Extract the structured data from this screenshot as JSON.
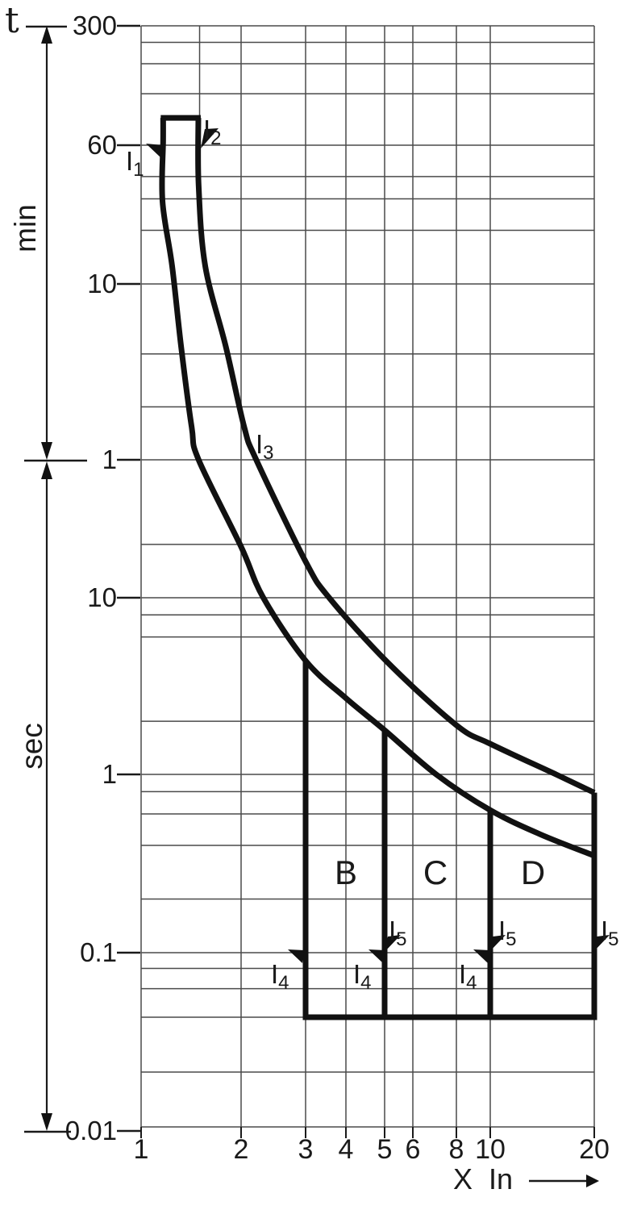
{
  "colors": {
    "background": "#ffffff",
    "grid": "#4a4a4a",
    "ink": "#1a1a1a",
    "curve": "#111111"
  },
  "chart_data": {
    "type": "line",
    "title": "",
    "description": "Miniature circuit breaker time-current tripping characteristic with B, C and D curve regions",
    "x_axis": {
      "label": "X In",
      "scale": "log",
      "range": [
        1,
        20
      ],
      "ticks": [
        "1",
        "2",
        "3",
        "4",
        "5",
        "6",
        "8",
        "10",
        "20"
      ],
      "tick_values": [
        1,
        2,
        3,
        4,
        5,
        6,
        8,
        10,
        20
      ]
    },
    "y_axis": {
      "symbol": "t",
      "scale": "log",
      "sections": [
        {
          "unit": "min",
          "tick_labels": [
            "300",
            "60",
            "10",
            "1"
          ],
          "tick_values": [
            300,
            60,
            10,
            1
          ]
        },
        {
          "unit": "sec",
          "tick_labels": [
            "10",
            "1",
            "0.1",
            "0.01"
          ],
          "tick_values": [
            10,
            1,
            0.1,
            0.01
          ]
        }
      ]
    },
    "grid": {
      "vertical_lines_x": [
        1,
        2,
        3,
        4,
        5,
        6,
        8,
        10,
        20
      ],
      "vertical_partial_x": 1.5,
      "horizontal_lines_t_seconds": [
        18000,
        14400,
        10800,
        7200,
        3600,
        2400,
        1800,
        1200,
        600,
        240,
        120,
        60,
        20,
        10,
        8,
        6,
        2,
        1,
        0.8,
        0.6,
        0.4,
        0.2,
        0.1,
        0.08,
        0.06,
        0.04,
        0.02,
        0.01
      ]
    },
    "series": [
      {
        "name": "lower trip limit",
        "points_x_tsec": [
          [
            1.165,
            5200
          ],
          [
            1.165,
            3800
          ],
          [
            1.16,
            1740
          ],
          [
            1.24,
            755
          ],
          [
            1.32,
            263
          ],
          [
            1.42,
            92
          ],
          [
            1.49,
            60
          ],
          [
            2.0,
            19.4
          ],
          [
            2.3,
            10
          ],
          [
            3.0,
            4.4
          ],
          [
            4.0,
            2.7
          ],
          [
            5.0,
            1.78
          ],
          [
            7.0,
            1.0
          ],
          [
            10,
            0.63
          ],
          [
            14,
            0.46
          ],
          [
            20,
            0.35
          ]
        ]
      },
      {
        "name": "upper trip limit",
        "points_x_tsec": [
          [
            1.487,
            5200
          ],
          [
            1.49,
            2140
          ],
          [
            1.56,
            755
          ],
          [
            1.8,
            263
          ],
          [
            2.04,
            92
          ],
          [
            2.2,
            60
          ],
          [
            3.0,
            16
          ],
          [
            3.55,
            10
          ],
          [
            5.1,
            4.3
          ],
          [
            8.0,
            1.9
          ],
          [
            10,
            1.49
          ],
          [
            15.5,
            1.0
          ],
          [
            20,
            0.79
          ]
        ]
      }
    ],
    "top_cap": {
      "t_seconds": 5200,
      "x_from": 1.165,
      "x_to": 1.487
    },
    "regions": [
      {
        "label": "B",
        "x_left": 3,
        "t_top_seconds": 4.4
      },
      {
        "label": "C",
        "x_left": 5,
        "t_top_seconds": 1.78
      },
      {
        "label": "D",
        "x_left": 10,
        "t_top_seconds": 0.63
      }
    ],
    "right_boundary": {
      "x": 20,
      "t_top_seconds": 0.79
    },
    "regions_bottom_t_seconds": 0.04,
    "annotations": {
      "i1": {
        "base": "I",
        "sub": "1"
      },
      "i2": {
        "base": "I",
        "sub": "2"
      },
      "i3": {
        "base": "I",
        "sub": "3"
      },
      "i4": {
        "base": "I",
        "sub": "4"
      },
      "i5": {
        "base": "I",
        "sub": "5"
      }
    }
  }
}
